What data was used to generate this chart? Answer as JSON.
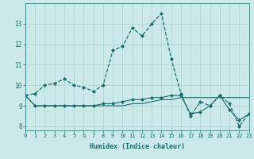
{
  "xlabel": "Humidex (Indice chaleur)",
  "bg_color": "#cce9e9",
  "grid_color": "#aad0d0",
  "line_color": "#1a6b6b",
  "x": [
    0,
    1,
    2,
    3,
    4,
    5,
    6,
    7,
    8,
    9,
    10,
    11,
    12,
    13,
    14,
    15,
    16,
    17,
    18,
    19,
    20,
    21,
    22,
    23
  ],
  "line1": [
    9.5,
    9.6,
    10.0,
    10.1,
    10.3,
    10.0,
    9.9,
    9.7,
    10.0,
    11.7,
    11.9,
    12.8,
    12.4,
    13.0,
    13.5,
    11.3,
    9.6,
    8.5,
    9.2,
    9.0,
    9.5,
    9.1,
    8.0,
    8.6
  ],
  "line2": [
    9.5,
    9.0,
    9.0,
    9.0,
    9.0,
    9.0,
    9.0,
    9.0,
    9.1,
    9.1,
    9.2,
    9.3,
    9.3,
    9.4,
    9.4,
    9.5,
    9.5,
    8.6,
    8.7,
    9.0,
    9.5,
    8.8,
    8.3,
    8.6
  ],
  "line3": [
    9.5,
    9.0,
    9.0,
    9.0,
    9.0,
    9.0,
    9.0,
    9.0,
    9.0,
    9.0,
    9.0,
    9.1,
    9.1,
    9.2,
    9.3,
    9.3,
    9.4,
    9.4,
    9.4,
    9.4,
    9.4,
    9.4,
    9.4,
    9.4
  ],
  "ylim": [
    7.8,
    14.0
  ],
  "yticks": [
    8,
    9,
    10,
    11,
    12,
    13
  ],
  "xlim": [
    0,
    23
  ]
}
